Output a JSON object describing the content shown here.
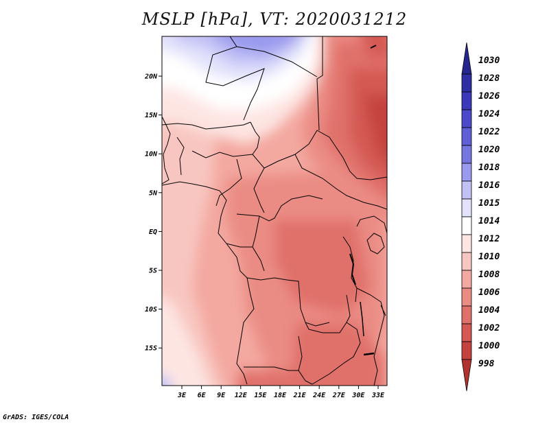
{
  "title": "MSLP [hPa], VT: 2020031212",
  "credit": "GrADS: IGES/COLA",
  "axes": {
    "lon_ticks": [
      "3E",
      "6E",
      "9E",
      "12E",
      "15E",
      "18E",
      "21E",
      "24E",
      "27E",
      "30E",
      "33E"
    ],
    "lat_ticks": [
      "20N",
      "15N",
      "10N",
      "5N",
      "EQ",
      "5S",
      "10S",
      "15S"
    ]
  },
  "colorbar": {
    "levels": [
      {
        "label": "1030",
        "color": "#26268f"
      },
      {
        "label": "1028",
        "color": "#2f2fa5"
      },
      {
        "label": "1026",
        "color": "#3939b9"
      },
      {
        "label": "1024",
        "color": "#4a4acb"
      },
      {
        "label": "1022",
        "color": "#5f5fd8"
      },
      {
        "label": "1020",
        "color": "#7777e2"
      },
      {
        "label": "1018",
        "color": "#9a9aee"
      },
      {
        "label": "1016",
        "color": "#c1c1f6"
      },
      {
        "label": "1015",
        "color": "#e2e2fb"
      },
      {
        "label": "1014",
        "color": "#ffffff"
      },
      {
        "label": "1012",
        "color": "#fde5e2"
      },
      {
        "label": "1010",
        "color": "#f8c6c0"
      },
      {
        "label": "1008",
        "color": "#f3a8a0"
      },
      {
        "label": "1006",
        "color": "#ea8c84"
      },
      {
        "label": "1004",
        "color": "#e0716a"
      },
      {
        "label": "1002",
        "color": "#d45853"
      },
      {
        "label": "1000",
        "color": "#c4433f"
      },
      {
        "label": "998",
        "color": "#b23230"
      }
    ]
  }
}
